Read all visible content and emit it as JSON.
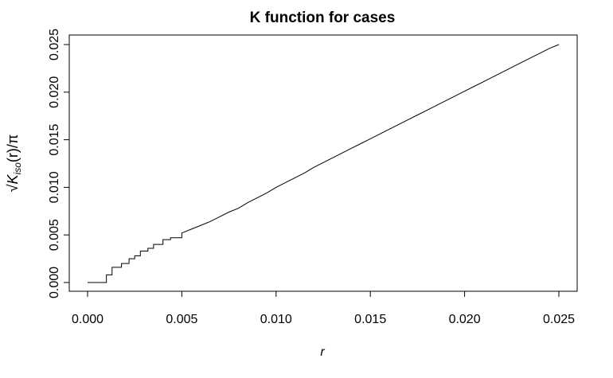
{
  "chart_data": {
    "type": "line",
    "title": "K function for cases",
    "xlabel": "r",
    "ylabel": "√K_iso(r)/π",
    "ylabel_parts": {
      "radical": "√",
      "symbol": "K",
      "subscript": "iso",
      "argument": "(r)",
      "divisor": "/π"
    },
    "xlim": [
      0.0,
      0.025
    ],
    "ylim": [
      0.0,
      0.025
    ],
    "x_ticks": [
      "0.000",
      "0.005",
      "0.010",
      "0.015",
      "0.020",
      "0.025"
    ],
    "y_ticks": [
      "0.000",
      "0.005",
      "0.010",
      "0.015",
      "0.020",
      "0.025"
    ],
    "grid": false,
    "legend": "none",
    "series": [
      {
        "color": "#000000",
        "line_style": "step",
        "x": [
          0.0,
          0.001,
          0.001,
          0.0013,
          0.0013,
          0.0018,
          0.0018,
          0.0022,
          0.0022,
          0.0025,
          0.0025,
          0.0028,
          0.0028,
          0.0032,
          0.0032,
          0.0035,
          0.0035,
          0.004,
          0.004,
          0.0044,
          0.0044,
          0.005,
          0.005,
          0.0055,
          0.006,
          0.0065,
          0.007,
          0.0075,
          0.008,
          0.0085,
          0.009,
          0.0095,
          0.01,
          0.0105,
          0.011,
          0.0115,
          0.012,
          0.0125,
          0.013,
          0.0135,
          0.014,
          0.0145,
          0.015,
          0.0155,
          0.016,
          0.0165,
          0.017,
          0.0175,
          0.018,
          0.0185,
          0.019,
          0.0195,
          0.02,
          0.0205,
          0.021,
          0.0215,
          0.022,
          0.0225,
          0.023,
          0.0235,
          0.024,
          0.0245,
          0.025
        ],
        "y": [
          0.0,
          0.0,
          0.0008,
          0.0008,
          0.0016,
          0.0016,
          0.002,
          0.002,
          0.0025,
          0.0025,
          0.0028,
          0.0028,
          0.0033,
          0.0033,
          0.0036,
          0.0036,
          0.004,
          0.004,
          0.0045,
          0.0045,
          0.0047,
          0.0047,
          0.0052,
          0.0056,
          0.006,
          0.0064,
          0.0069,
          0.0074,
          0.0078,
          0.0084,
          0.0089,
          0.0094,
          0.01,
          0.0105,
          0.011,
          0.0115,
          0.0121,
          0.0126,
          0.0131,
          0.0136,
          0.0141,
          0.0146,
          0.0151,
          0.0156,
          0.0161,
          0.0166,
          0.0171,
          0.0176,
          0.0181,
          0.0186,
          0.0191,
          0.0196,
          0.0201,
          0.0206,
          0.0211,
          0.0216,
          0.0221,
          0.0226,
          0.0231,
          0.0236,
          0.0241,
          0.0246,
          0.025
        ]
      }
    ]
  }
}
